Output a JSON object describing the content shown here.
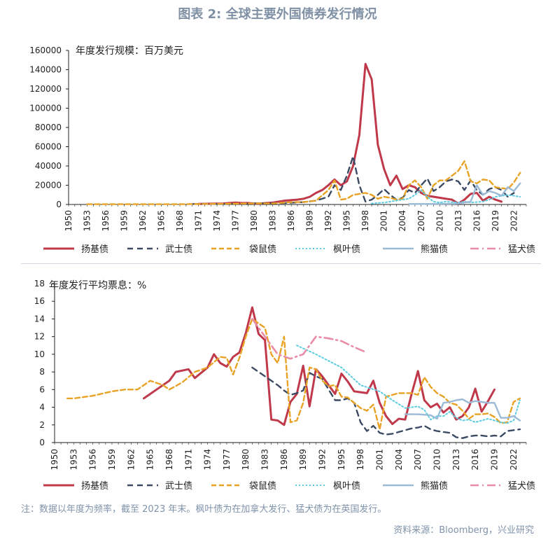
{
  "title": "图表 2: 全球主要外国债券发行情况",
  "footnote": "注：数据以年度为频率，截至 2023 年末。枫叶债为在加拿大发行、猛犬债为在英国发行。",
  "source": "资料来源：Bloomberg，兴业研究",
  "colors": {
    "title": "#8091a5",
    "yankee": "#c0394b",
    "samurai": "#3b4a62",
    "kangaroo": "#e8a326",
    "maple": "#5ccde0",
    "panda": "#9bbad6",
    "bulldog": "#e98ca5",
    "panda_late": "#a5b37a"
  },
  "x_tick_labels": [
    "1950",
    "1953",
    "1956",
    "1959",
    "1962",
    "1965",
    "1968",
    "1971",
    "1974",
    "1977",
    "1980",
    "1983",
    "1986",
    "1989",
    "1992",
    "1995",
    "1998",
    "2001",
    "2004",
    "2007",
    "2010",
    "2013",
    "2016",
    "2019",
    "2022"
  ],
  "chart_data": [
    {
      "type": "line",
      "annotation": "年度发行规模：百万美元",
      "ylim": [
        0,
        160000
      ],
      "y_ticks": [
        0,
        20000,
        40000,
        60000,
        80000,
        100000,
        120000,
        140000,
        160000
      ],
      "series": [
        {
          "name": "扬基债",
          "key": "yankee",
          "x": [
            1971,
            1973,
            1975,
            1976,
            1977,
            1978,
            1979,
            1980,
            1981,
            1982,
            1983,
            1984,
            1985,
            1986,
            1987,
            1988,
            1989,
            1990,
            1991,
            1992,
            1993,
            1994,
            1995,
            1996,
            1997,
            1998,
            1999,
            2000,
            2001,
            2002,
            2003,
            2004,
            2005,
            2006,
            2007,
            2008,
            2009,
            2010,
            2011,
            2012,
            2013,
            2014,
            2015,
            2016,
            2017,
            2018,
            2019,
            2020
          ],
          "values": [
            500,
            800,
            1000,
            1500,
            2000,
            1500,
            1500,
            1000,
            1000,
            1500,
            2000,
            3000,
            4000,
            4500,
            5000,
            6000,
            8000,
            12000,
            15000,
            20000,
            26000,
            20000,
            24000,
            40000,
            72000,
            146000,
            130000,
            62000,
            37000,
            20000,
            30000,
            16000,
            20000,
            18000,
            12000,
            9000,
            8000,
            7000,
            6000,
            5000,
            1000,
            5000,
            11000,
            12000,
            4000,
            8000,
            5000,
            3000
          ]
        },
        {
          "name": "武士债",
          "key": "samurai",
          "x": [
            1970,
            1975,
            1980,
            1985,
            1988,
            1990,
            1992,
            1993,
            1994,
            1995,
            1996,
            1997,
            1998,
            1999,
            2000,
            2001,
            2002,
            2003,
            2004,
            2005,
            2006,
            2007,
            2008,
            2009,
            2010,
            2011,
            2012,
            2013,
            2014,
            2015,
            2016,
            2017,
            2018,
            2019,
            2020,
            2021,
            2022
          ],
          "values": [
            500,
            500,
            1000,
            1500,
            2500,
            4000,
            8000,
            20000,
            15000,
            30000,
            50000,
            20000,
            3000,
            5000,
            10000,
            16000,
            10000,
            5000,
            7000,
            15000,
            12000,
            20000,
            27000,
            14000,
            18000,
            24000,
            26000,
            24000,
            15000,
            25000,
            15000,
            10000,
            16000,
            18000,
            15000,
            8000,
            12000
          ]
        },
        {
          "name": "袋鼠债",
          "key": "kangaroo",
          "x": [
            1953,
            1962,
            1968,
            1979,
            1983,
            1986,
            1988,
            1990,
            1992,
            1993,
            1994,
            1995,
            1996,
            1997,
            1998,
            1999,
            2000,
            2001,
            2002,
            2003,
            2004,
            2005,
            2006,
            2007,
            2008,
            2009,
            2010,
            2011,
            2012,
            2013,
            2014,
            2015,
            2016,
            2017,
            2018,
            2019,
            2020,
            2021,
            2022,
            2023
          ],
          "values": [
            300,
            300,
            300,
            1000,
            1000,
            2500,
            2500,
            4000,
            15000,
            25000,
            5000,
            6000,
            10000,
            11000,
            12000,
            10000,
            6000,
            8000,
            7000,
            5000,
            6000,
            20000,
            25000,
            18000,
            6000,
            20000,
            25000,
            25000,
            30000,
            35000,
            45000,
            24000,
            22000,
            26000,
            25000,
            18000,
            17000,
            16000,
            23000,
            33000
          ]
        },
        {
          "name": "枫叶债",
          "key": "maple",
          "x": [
            1999,
            2000,
            2001,
            2002,
            2003,
            2004,
            2005,
            2006,
            2007,
            2008,
            2009,
            2010,
            2011,
            2012,
            2013,
            2014,
            2015,
            2016,
            2017,
            2018,
            2019,
            2020,
            2021,
            2022,
            2023
          ],
          "values": [
            1000,
            1500,
            2000,
            3000,
            4000,
            5000,
            6000,
            10000,
            15000,
            8000,
            3000,
            2000,
            3000,
            2500,
            2000,
            3000,
            2000,
            2500,
            3000,
            5000,
            8000,
            9000,
            10000,
            9000,
            8000
          ]
        },
        {
          "name": "熊猫债",
          "key": "panda",
          "x": [
            2005,
            2007,
            2010,
            2012,
            2013,
            2014,
            2015,
            2016,
            2017,
            2018,
            2019,
            2020,
            2021,
            2022,
            2023
          ],
          "values": [
            500,
            500,
            600,
            800,
            1000,
            2000,
            3000,
            20000,
            10000,
            14000,
            12000,
            9000,
            18000,
            14000,
            22000
          ]
        },
        {
          "name": "猛犬债",
          "key": "bulldog",
          "x": [],
          "values": []
        }
      ]
    },
    {
      "type": "line",
      "annotation": "年度发行平均票息：%",
      "ylim": [
        0,
        18
      ],
      "y_ticks": [
        0,
        2,
        4,
        6,
        8,
        10,
        12,
        14,
        16,
        18
      ],
      "series": [
        {
          "name": "扬基债",
          "key": "yankee",
          "x": [
            1964,
            1966,
            1968,
            1969,
            1971,
            1972,
            1974,
            1975,
            1976,
            1977,
            1978,
            1979,
            1980,
            1981,
            1982,
            1983,
            1984,
            1985,
            1986,
            1987,
            1988,
            1989,
            1990,
            1991,
            1992,
            1993,
            1994,
            1995,
            1996,
            1997,
            1998,
            1999,
            2000,
            2001,
            2002,
            2003,
            2004,
            2005,
            2006,
            2007,
            2008,
            2009,
            2010,
            2011,
            2012,
            2013,
            2014,
            2015,
            2016,
            2017,
            2018,
            2019
          ],
          "values": [
            5,
            6,
            7,
            8,
            8.3,
            7.3,
            8.5,
            10,
            9,
            8.6,
            9.7,
            10.2,
            12.4,
            15.3,
            12.3,
            11.6,
            2.6,
            2.5,
            2,
            4.6,
            5.5,
            8.7,
            4.1,
            8.3,
            7.5,
            6.5,
            5.5,
            7.8,
            6.9,
            5.8,
            5.7,
            5.6,
            7,
            4.5,
            3,
            2.1,
            2.7,
            2.6,
            5.5,
            8.1,
            4.8,
            4,
            4.4,
            3.4,
            4,
            2.6,
            3,
            4,
            6.1,
            3.5,
            4.7,
            6
          ]
        },
        {
          "name": "武士债",
          "key": "samurai",
          "x": [
            1981,
            1983,
            1985,
            1986,
            1987,
            1988,
            1989,
            1990,
            1991,
            1992,
            1993,
            1994,
            1995,
            1996,
            1997,
            1998,
            1999,
            2000,
            2001,
            2002,
            2003,
            2004,
            2005,
            2006,
            2007,
            2008,
            2009,
            2010,
            2011,
            2012,
            2013,
            2014,
            2015,
            2016,
            2017,
            2018,
            2019,
            2020,
            2021,
            2022,
            2023
          ],
          "values": [
            8.5,
            7.5,
            6.5,
            5.9,
            5.4,
            5.6,
            5.9,
            7.9,
            7.5,
            7.2,
            6,
            4.8,
            4.8,
            5,
            4.5,
            2.3,
            1.3,
            1.9,
            1.1,
            0.9,
            1,
            1.2,
            1.4,
            1.6,
            1.7,
            1.9,
            1.5,
            1.3,
            1.2,
            1.1,
            0.6,
            0.5,
            0.7,
            0.8,
            0.8,
            0.7,
            0.8,
            0.7,
            1.3,
            1.4,
            1.5
          ]
        },
        {
          "name": "袋鼠债",
          "key": "kangaroo",
          "x": [
            1952,
            1953,
            1956,
            1959,
            1961,
            1963,
            1964,
            1965,
            1967,
            1968,
            1970,
            1972,
            1974,
            1976,
            1977,
            1978,
            1979,
            1980,
            1981,
            1982,
            1983,
            1984,
            1985,
            1986,
            1987,
            1988,
            1989,
            1990,
            1991,
            1992,
            1993,
            1994,
            1995,
            1996,
            1997,
            1998,
            1999,
            2000,
            2001,
            2002,
            2003,
            2004,
            2005,
            2006,
            2007,
            2008,
            2009,
            2010,
            2011,
            2012,
            2013,
            2014,
            2015,
            2016,
            2017,
            2018,
            2019,
            2020,
            2021,
            2022,
            2023
          ],
          "values": [
            5,
            5,
            5.3,
            5.8,
            6,
            6,
            6.5,
            7,
            6.5,
            6,
            6.8,
            8,
            8.5,
            9.7,
            9.6,
            7.7,
            9.6,
            12,
            14,
            13.5,
            13,
            10,
            9,
            12,
            2.3,
            2.5,
            4.5,
            8.5,
            8.3,
            7,
            6.4,
            6.5,
            5.2,
            5.1,
            4.5,
            3.9,
            3.6,
            4.3,
            1.5,
            5.2,
            5.4,
            5.6,
            5.6,
            5.6,
            5.4,
            7.4,
            6.3,
            5.6,
            5.2,
            4.5,
            4.3,
            3.6,
            2.7,
            3.2,
            3.2,
            3.3,
            2.9,
            2.2,
            2.3,
            4.6,
            5
          ]
        },
        {
          "name": "枫叶债",
          "key": "maple",
          "x": [
            1988,
            1991,
            1995,
            1998,
            2001,
            2003,
            2005,
            2007,
            2008,
            2009,
            2010,
            2011,
            2012,
            2013,
            2014,
            2015,
            2016,
            2017,
            2018,
            2019,
            2020,
            2021,
            2022,
            2023
          ],
          "values": [
            11,
            10,
            8.5,
            6.5,
            5.8,
            4.8,
            3.9,
            4.1,
            3.7,
            2.6,
            3,
            3,
            3.5,
            2.8,
            2.5,
            2.6,
            2.3,
            2.5,
            2.7,
            2.5,
            2.3,
            2.2,
            2.5,
            4.8
          ]
        },
        {
          "name": "熊猫债",
          "key": "panda",
          "x": [
            2005,
            2007,
            2009,
            2010,
            2011,
            2012,
            2013,
            2014,
            2015,
            2016,
            2017,
            2018,
            2019,
            2020,
            2021,
            2022,
            2023
          ],
          "values": [
            3.2,
            3.2,
            3.1,
            2.7,
            4.5,
            4.6,
            4.8,
            4.9,
            4.5,
            4.7,
            4.6,
            4.5,
            4.5,
            2.8,
            2.8,
            3,
            2.5
          ]
        },
        {
          "name": "猛犬债",
          "key": "bulldog",
          "x": [
            1981,
            1983,
            1985,
            1987,
            1989,
            1991,
            1993,
            1995,
            1997,
            1999
          ],
          "values": [
            14,
            12,
            10,
            9.5,
            10,
            12,
            11.8,
            11.5,
            10.8,
            10.2
          ]
        }
      ]
    }
  ],
  "legend_order": [
    "yankee",
    "samurai",
    "kangaroo",
    "maple",
    "panda",
    "bulldog"
  ]
}
